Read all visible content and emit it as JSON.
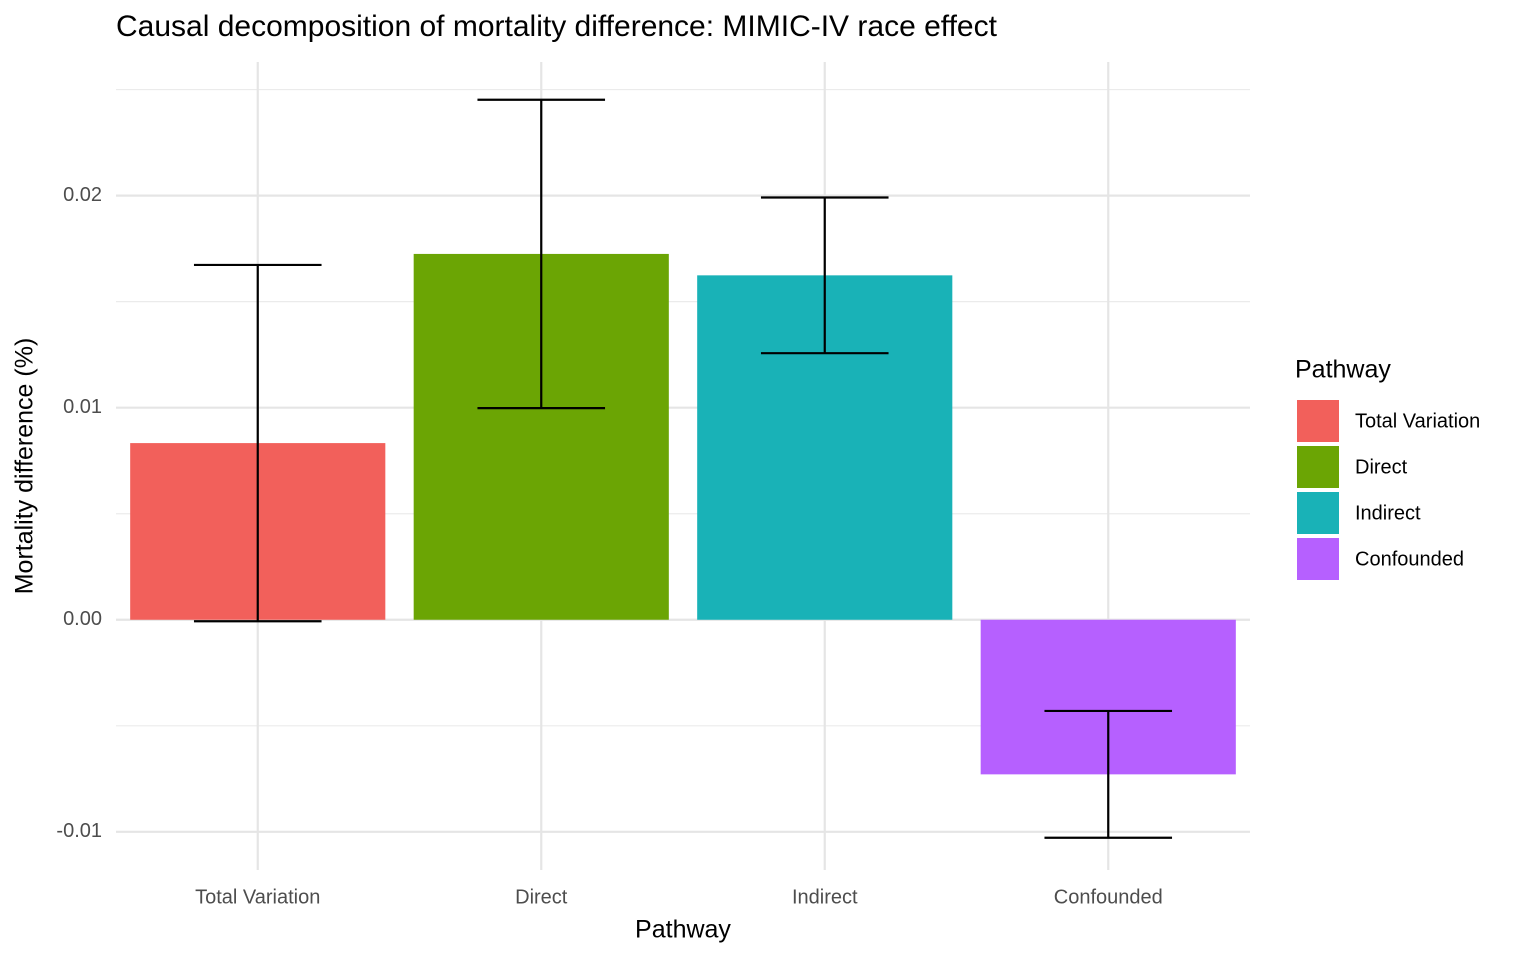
{
  "chart_data": {
    "type": "bar",
    "title": "Causal decomposition of mortality difference: MIMIC-IV race effect",
    "xlabel": "Pathway",
    "ylabel": "Mortality difference (%)",
    "legend_title": "Pathway",
    "legend_position": "right",
    "categories": [
      "Total Variation",
      "Direct",
      "Indirect",
      "Confounded"
    ],
    "values": [
      0.00833,
      0.01725,
      0.01624,
      -0.00729
    ],
    "errors": [
      0.0084,
      0.00727,
      0.00367,
      0.00299
    ],
    "colors": [
      "#F2605B",
      "#6BA504",
      "#19B2B7",
      "#B660FF"
    ],
    "ylim": [
      -0.0118,
      0.0263
    ],
    "yticks": [
      -0.01,
      {
        "value": 0,
        "label": "0.00"
      },
      0.01,
      0.02
    ],
    "minor_yticks": [
      -0.005,
      0.005,
      0.015,
      0.025
    ],
    "grid": true
  }
}
